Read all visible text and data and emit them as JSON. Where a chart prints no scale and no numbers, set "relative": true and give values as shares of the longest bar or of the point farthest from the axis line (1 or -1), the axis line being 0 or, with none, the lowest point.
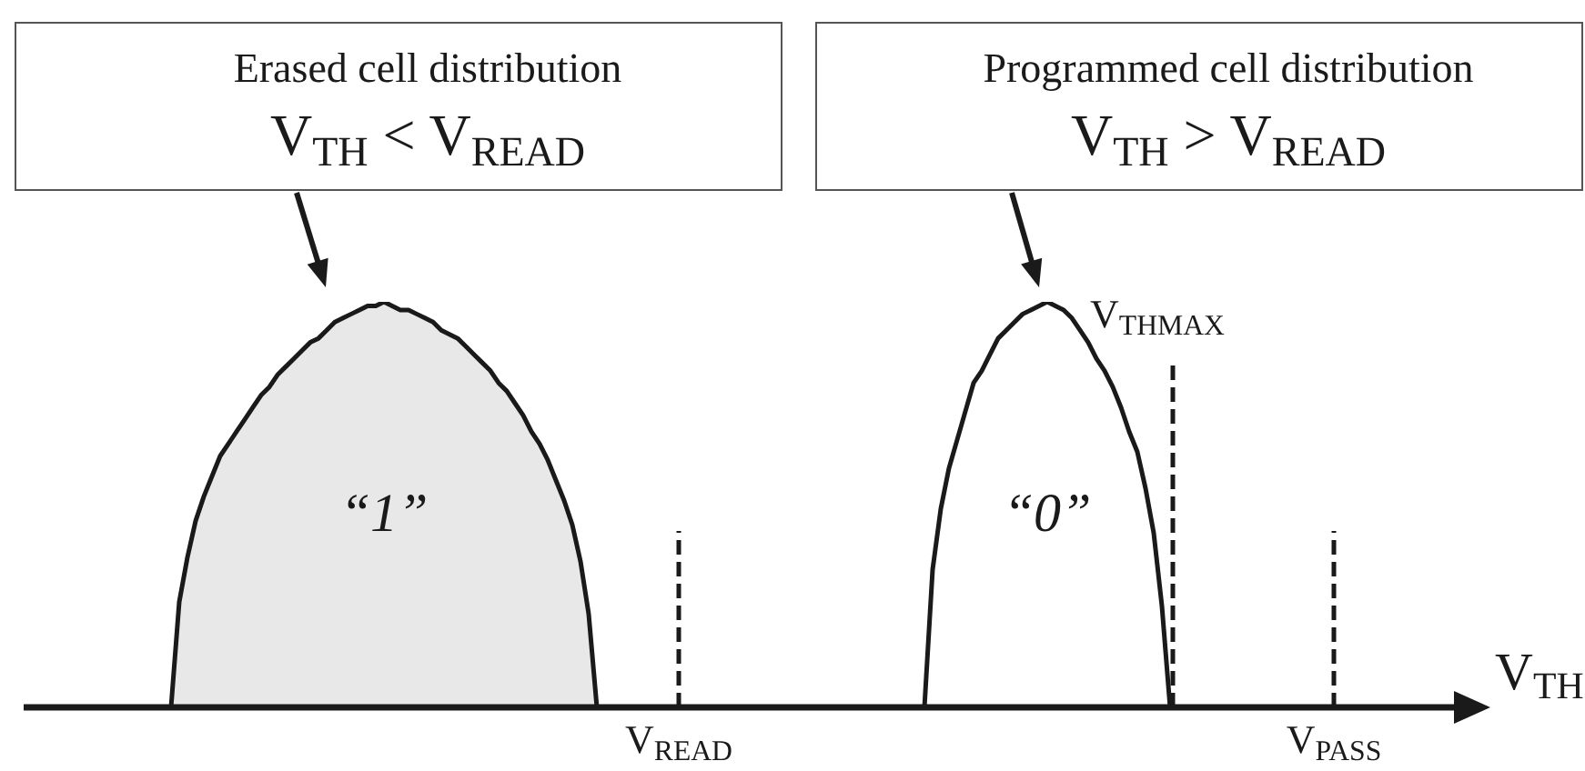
{
  "chart_data": {
    "type": "area",
    "relative": true,
    "categories": [
      null,
      null,
      null,
      null,
      null,
      null,
      null,
      null,
      null,
      null,
      null,
      null,
      null,
      null,
      null,
      null,
      null,
      null,
      null,
      null,
      null,
      null,
      null,
      null,
      null,
      null,
      null,
      null,
      null,
      null,
      null,
      null,
      null,
      null,
      null,
      null,
      null,
      null,
      null,
      null,
      null,
      null,
      null,
      null,
      null,
      null,
      null,
      null,
      null,
      null,
      null,
      null,
      null,
      null,
      null,
      null,
      null,
      null,
      null,
      null,
      null,
      null,
      null,
      null,
      null,
      null,
      null,
      null,
      null,
      null,
      null,
      null,
      null,
      null,
      null,
      null,
      null,
      null,
      null,
      null,
      "V$_{READ}$",
      null,
      null,
      null,
      null,
      null,
      null,
      null,
      null,
      null,
      null,
      null,
      null,
      null,
      null,
      null,
      null,
      null,
      null,
      null,
      null,
      null,
      null,
      null,
      null,
      null,
      null,
      null,
      null,
      null,
      null,
      null,
      null,
      null,
      null,
      null,
      null,
      null,
      null,
      null,
      null,
      null,
      null,
      null,
      null,
      null,
      null,
      null,
      null,
      null,
      null,
      null,
      null,
      null,
      null,
      null,
      null,
      null,
      null,
      null,
      null,
      null,
      null,
      null,
      null,
      null,
      null,
      null,
      null,
      null,
      null,
      null,
      null,
      null,
      null,
      null,
      null,
      null,
      null,
      null,
      "V$_{PASS}$",
      null,
      null,
      null,
      null,
      null,
      null,
      null,
      null,
      null,
      null,
      null,
      null,
      null,
      null,
      null,
      null,
      null,
      null,
      null
    ],
    "series": [
      {
        "name": "“1”",
        "color": "#e8e8e8",
        "values": [
          null,
          null,
          null,
          null,
          null,
          null,
          null,
          null,
          null,
          null,
          null,
          null,
          null,
          null,
          null,
          null,
          null,
          null,
          0,
          0.26,
          0.37,
          0.46,
          0.52,
          0.57,
          0.62,
          0.65,
          0.68,
          0.71,
          0.74,
          0.77,
          0.79,
          0.82,
          0.84,
          0.86,
          0.88,
          0.9,
          0.91,
          0.93,
          0.95,
          0.96,
          0.97,
          0.98,
          0.99,
          0.99,
          1,
          0.99,
          0.98,
          0.98,
          0.97,
          0.96,
          0.95,
          0.93,
          0.92,
          0.91,
          0.89,
          0.87,
          0.85,
          0.83,
          0.8,
          0.78,
          0.75,
          0.72,
          0.68,
          0.65,
          0.61,
          0.56,
          0.51,
          0.45,
          0.36,
          0.23,
          0,
          null,
          null,
          null,
          null,
          null,
          null,
          null,
          null,
          null,
          null,
          null,
          null,
          null,
          null,
          null,
          null,
          null,
          null,
          null,
          null,
          null,
          null,
          null,
          null,
          null,
          null,
          null,
          null,
          null,
          null,
          null,
          null,
          null,
          null,
          null,
          null,
          null,
          null,
          null,
          null,
          null,
          null,
          null,
          null,
          null,
          null,
          null,
          null,
          null,
          null,
          null,
          null,
          null,
          null,
          null,
          null,
          null,
          null,
          null,
          null,
          null,
          null,
          null,
          null,
          null,
          null,
          null,
          null,
          null,
          null,
          null,
          null,
          null,
          null,
          null,
          null,
          null,
          null,
          null,
          null,
          null,
          null,
          null,
          null,
          null,
          null,
          null,
          null,
          null,
          null,
          null,
          null,
          null,
          null,
          null,
          null,
          null,
          null,
          null,
          null,
          null,
          null,
          null,
          null,
          null,
          null,
          null,
          null,
          null
        ]
      },
      {
        "name": "“0”",
        "color": "#ffffff",
        "values": [
          null,
          null,
          null,
          null,
          null,
          null,
          null,
          null,
          null,
          null,
          null,
          null,
          null,
          null,
          null,
          null,
          null,
          null,
          null,
          null,
          null,
          null,
          null,
          null,
          null,
          null,
          null,
          null,
          null,
          null,
          null,
          null,
          null,
          null,
          null,
          null,
          null,
          null,
          null,
          null,
          null,
          null,
          null,
          null,
          null,
          null,
          null,
          null,
          null,
          null,
          null,
          null,
          null,
          null,
          null,
          null,
          null,
          null,
          null,
          null,
          null,
          null,
          null,
          null,
          null,
          null,
          null,
          null,
          null,
          null,
          null,
          null,
          null,
          null,
          null,
          null,
          null,
          null,
          null,
          null,
          null,
          null,
          null,
          null,
          null,
          null,
          null,
          null,
          null,
          null,
          null,
          null,
          null,
          null,
          null,
          null,
          null,
          null,
          null,
          null,
          null,
          null,
          null,
          null,
          null,
          null,
          null,
          null,
          null,
          null,
          0,
          0.34,
          0.49,
          0.59,
          0.66,
          0.73,
          0.8,
          0.83,
          0.87,
          0.91,
          0.93,
          0.95,
          0.97,
          0.98,
          0.99,
          1,
          0.99,
          0.98,
          0.96,
          0.93,
          0.9,
          0.86,
          0.83,
          0.79,
          0.74,
          0.68,
          0.63,
          0.54,
          0.43,
          0.25,
          0,
          null,
          null,
          null,
          null,
          null,
          null,
          null,
          null,
          null,
          null,
          null,
          null,
          null,
          null,
          null,
          null,
          null,
          null,
          null,
          null,
          null,
          null,
          null,
          null,
          null,
          null,
          null,
          null,
          null,
          null,
          null,
          null,
          null,
          null,
          null,
          null,
          null,
          null,
          null
        ]
      }
    ],
    "xlabel": "V$_{TH}$",
    "annotations": [
      "Erased cell distribution\nV$_{TH}$ < V$_{READ}$",
      "Programmed cell distribution\nV$_{TH}$ > V$_{READ}$",
      "V$_{THMAX}$"
    ],
    "ref_lines": [
      {
        "axis": "x",
        "value": "V$_{READ}$",
        "line_style": "dashed"
      },
      {
        "axis": "x",
        "value": "V$_{PASS}$",
        "line_style": "dashed"
      }
    ]
  }
}
